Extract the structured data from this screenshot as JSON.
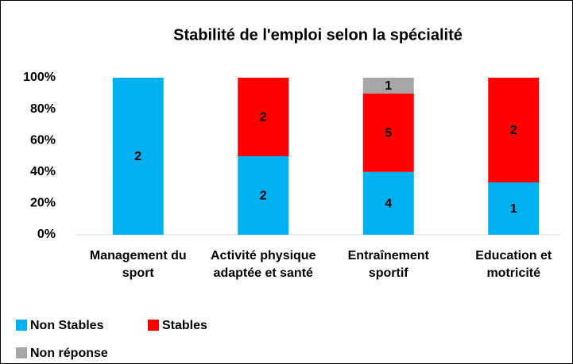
{
  "chart_data": {
    "type": "bar",
    "stacking": "percent",
    "title": "Stabilité de l'emploi selon la spécialité",
    "categories": [
      "Management du sport",
      "Activité physique adaptée et santé",
      "Entraînement sportif",
      "Education et motricité"
    ],
    "series": [
      {
        "name": "Non Stables",
        "color": "#00b0f0",
        "values": [
          2,
          2,
          4,
          1
        ]
      },
      {
        "name": "Stables",
        "color": "#ff0000",
        "values": [
          0,
          2,
          5,
          2
        ]
      },
      {
        "name": "Non réponse",
        "color": "#a6a6a6",
        "values": [
          0,
          0,
          1,
          0
        ]
      }
    ],
    "ylim": [
      0,
      100
    ],
    "yticks": [
      {
        "value": 0,
        "label": "0%"
      },
      {
        "value": 20,
        "label": "20%"
      },
      {
        "value": 40,
        "label": "40%"
      },
      {
        "value": 60,
        "label": "60%"
      },
      {
        "value": 80,
        "label": "80%"
      },
      {
        "value": 100,
        "label": "100%"
      }
    ],
    "grid": false,
    "legend": "bottom"
  }
}
